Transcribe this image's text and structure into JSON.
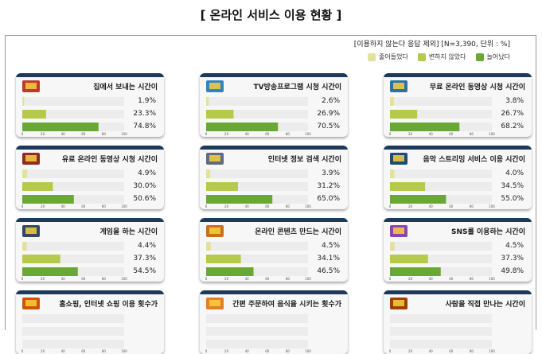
{
  "page_title": "[ 온라인 서비스 이용 현황 ]",
  "note": "[이용하지 않는다 응답 제외] [N=3,390, 단위 : %]",
  "colors": {
    "decreased": "#e3e29a",
    "unchanged": "#b5c94a",
    "increased": "#6aa834",
    "card_bar": "#1e3a5a"
  },
  "chart_data": {
    "type": "bar",
    "orientation": "horizontal",
    "series_names": [
      "줄어들었다",
      "변하지 않았다",
      "늘어났다"
    ],
    "xlim": [
      0,
      100
    ],
    "ticks": [
      "0",
      "20",
      "40",
      "60",
      "80",
      "100"
    ],
    "panels": [
      {
        "title": "집에서 보내는 시간이",
        "icon": "house-icon",
        "values": [
          1.9,
          23.3,
          74.8
        ],
        "labels": [
          "1.9%",
          "23.3%",
          "74.8%"
        ]
      },
      {
        "title": "TV방송프로그램 시청 시간이",
        "icon": "tv-icon",
        "values": [
          2.6,
          26.9,
          70.5
        ],
        "labels": [
          "2.6%",
          "26.9%",
          "70.5%"
        ]
      },
      {
        "title": "무료 온라인 동영상 시청 시간이",
        "icon": "laptop-video-icon",
        "values": [
          3.8,
          26.7,
          68.2
        ],
        "labels": [
          "3.8%",
          "26.7%",
          "68.2%"
        ]
      },
      {
        "title": "유료 온라인 동영상 시청 시간이",
        "icon": "video-play-icon",
        "values": [
          4.9,
          30.0,
          50.6
        ],
        "labels": [
          "4.9%",
          "30.0%",
          "50.6%"
        ]
      },
      {
        "title": "인터넷 정보 검색 시간이",
        "icon": "search-web-icon",
        "values": [
          3.9,
          31.2,
          65.0
        ],
        "labels": [
          "3.9%",
          "31.2%",
          "65.0%"
        ]
      },
      {
        "title": "음악 스트리밍 서비스 이용 시간이",
        "icon": "headphones-icon",
        "values": [
          4.0,
          34.5,
          55.0
        ],
        "labels": [
          "4.0%",
          "34.5%",
          "55.0%"
        ]
      },
      {
        "title": "게임을 하는 시간이",
        "icon": "gamepad-icon",
        "values": [
          4.4,
          37.3,
          54.5
        ],
        "labels": [
          "4.4%",
          "37.3%",
          "54.5%"
        ]
      },
      {
        "title": "온라인 콘텐츠 만드는 시간이",
        "icon": "content-creation-icon",
        "values": [
          4.5,
          34.1,
          46.5
        ],
        "labels": [
          "4.5%",
          "34.1%",
          "46.5%"
        ]
      },
      {
        "title": "SNS를 이용하는 시간이",
        "icon": "social-network-icon",
        "values": [
          4.5,
          37.3,
          49.8
        ],
        "labels": [
          "4.5%",
          "37.3%",
          "49.8%"
        ]
      },
      {
        "title": "홈쇼핑, 인터넷 쇼핑 이용 횟수가",
        "icon": "shopping-icon",
        "values": [],
        "labels": []
      },
      {
        "title": "간편 주문하여 음식을 시키는 횟수가",
        "icon": "food-delivery-icon",
        "values": [],
        "labels": []
      },
      {
        "title": "사람을 직접 만나는 시간이",
        "icon": "people-meeting-icon",
        "values": [],
        "labels": []
      }
    ]
  }
}
